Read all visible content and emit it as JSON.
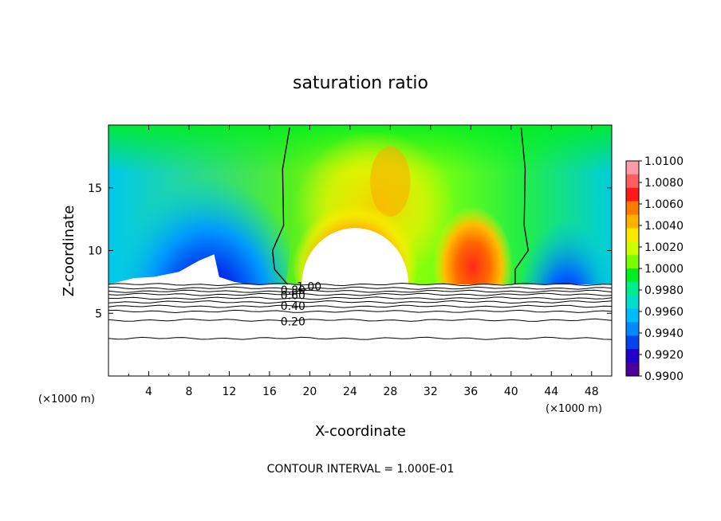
{
  "chart_data": {
    "type": "heatmap",
    "title": "saturation ratio",
    "xlabel": "X-coordinate",
    "ylabel": "Z-coordinate",
    "x_unit_left": "(×1000 m)",
    "x_unit_right": "(×1000 m)",
    "xlim": [
      0,
      50
    ],
    "ylim": [
      0,
      20
    ],
    "x_ticks": [
      4,
      8,
      12,
      16,
      20,
      24,
      28,
      32,
      36,
      40,
      44,
      48
    ],
    "y_ticks": [
      5,
      10,
      15
    ],
    "footer": "CONTOUR INTERVAL = 1.000E-01",
    "colorbar": {
      "labels": [
        "1.0100",
        "1.0080",
        "1.0060",
        "1.0040",
        "1.0020",
        "1.0000",
        "0.9980",
        "0.9960",
        "0.9940",
        "0.9920",
        "0.9900"
      ],
      "colors": [
        "#ff9aa6",
        "#ff5e60",
        "#ff1a1a",
        "#ff7a00",
        "#ffb000",
        "#ffe800",
        "#ccff00",
        "#7bff00",
        "#00ee22",
        "#00ee88",
        "#00ddcc",
        "#00bbff",
        "#0088ff",
        "#0044ee",
        "#2200cc",
        "#4a0099"
      ]
    },
    "contour_labels": [
      {
        "text": "1.00",
        "x": 18.7,
        "y": 7.15
      },
      {
        "text": "0.80",
        "x": 17.1,
        "y": 6.85
      },
      {
        "text": "0.60",
        "x": 17.1,
        "y": 6.45
      },
      {
        "text": "0.40",
        "x": 17.1,
        "y": 5.6
      },
      {
        "text": "0.20",
        "x": 17.1,
        "y": 4.35
      }
    ],
    "contour_levels_z": [
      7.3,
      7.0,
      6.75,
      6.5,
      6.2,
      5.9,
      5.55,
      5.15,
      4.45,
      3.0
    ],
    "saturation_contour_x": [
      [
        18.0,
        17.3,
        17.4,
        16.3,
        16.5,
        17.8
      ],
      [
        41.0,
        41.4,
        41.3,
        41.7,
        40.4,
        40.4
      ]
    ]
  }
}
